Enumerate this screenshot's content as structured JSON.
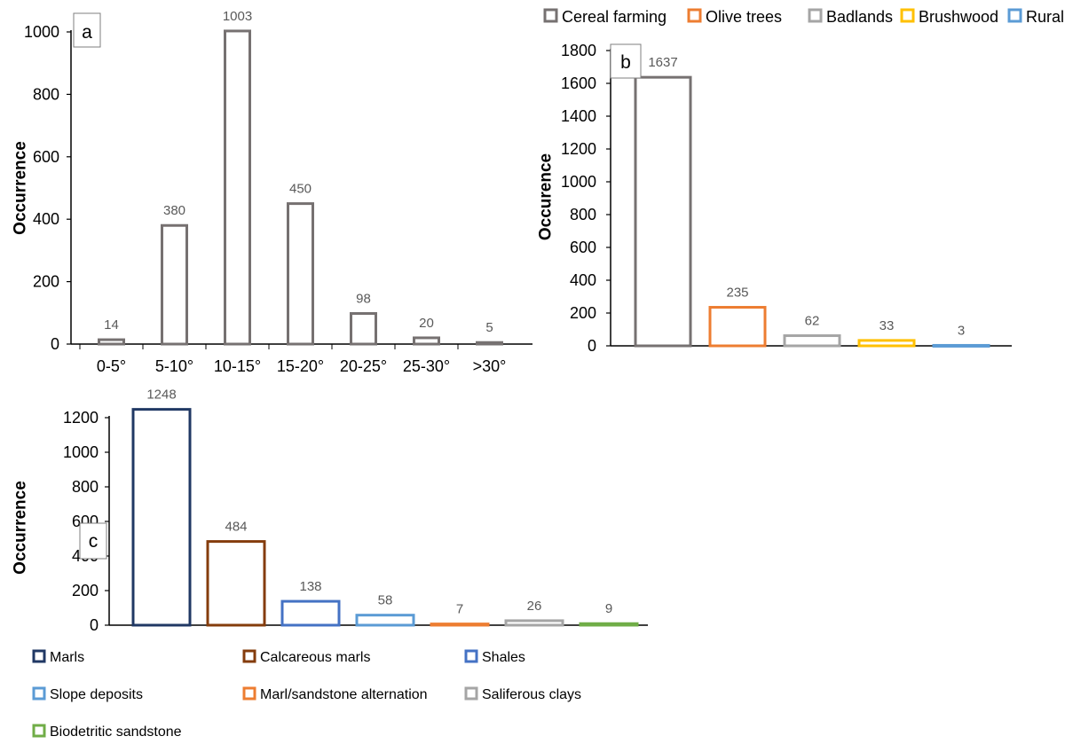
{
  "chart_data": [
    {
      "panel": "a",
      "type": "bar",
      "ylabel": "Occurrence",
      "ylim": [
        0,
        1000
      ],
      "yticks": [
        0,
        200,
        400,
        600,
        800,
        1000
      ],
      "categories": [
        "0-5°",
        "5-10°",
        "10-15°",
        "15-20°",
        "20-25°",
        "25-30°",
        ">30°"
      ],
      "values": [
        14,
        380,
        1003,
        450,
        98,
        20,
        5
      ],
      "colors": [
        "#767171",
        "#767171",
        "#767171",
        "#767171",
        "#767171",
        "#767171",
        "#767171"
      ],
      "grid": false
    },
    {
      "panel": "b",
      "type": "bar",
      "ylabel": "Occurence",
      "ylim": [
        0,
        1800
      ],
      "yticks": [
        0,
        200,
        400,
        600,
        800,
        1000,
        1200,
        1400,
        1600,
        1800
      ],
      "categories": [
        "Cereal farming",
        "Olive trees",
        "Badlands",
        "Brushwood",
        "Rural"
      ],
      "values": [
        1637,
        235,
        62,
        33,
        3
      ],
      "colors": [
        "#767171",
        "#ED7D31",
        "#A5A5A5",
        "#FFC000",
        "#5B9BD5"
      ],
      "legend": "top",
      "grid": false
    },
    {
      "panel": "c",
      "type": "bar",
      "ylabel": "Occurrence",
      "ylim": [
        0,
        1200
      ],
      "yticks": [
        0,
        200,
        400,
        600,
        800,
        1000,
        1200
      ],
      "categories": [
        "Marls",
        "Calcareous marls",
        "Shales",
        "Slope deposits",
        "Marl/sandstone alternation",
        "Saliferous clays",
        "Biodetritic sandstone"
      ],
      "values": [
        1248,
        484,
        138,
        58,
        7,
        26,
        9
      ],
      "colors": [
        "#203864",
        "#843C0C",
        "#4472C4",
        "#5B9BD5",
        "#ED7D31",
        "#A5A5A5",
        "#70AD47"
      ],
      "legend": "bottom",
      "grid": false
    }
  ]
}
